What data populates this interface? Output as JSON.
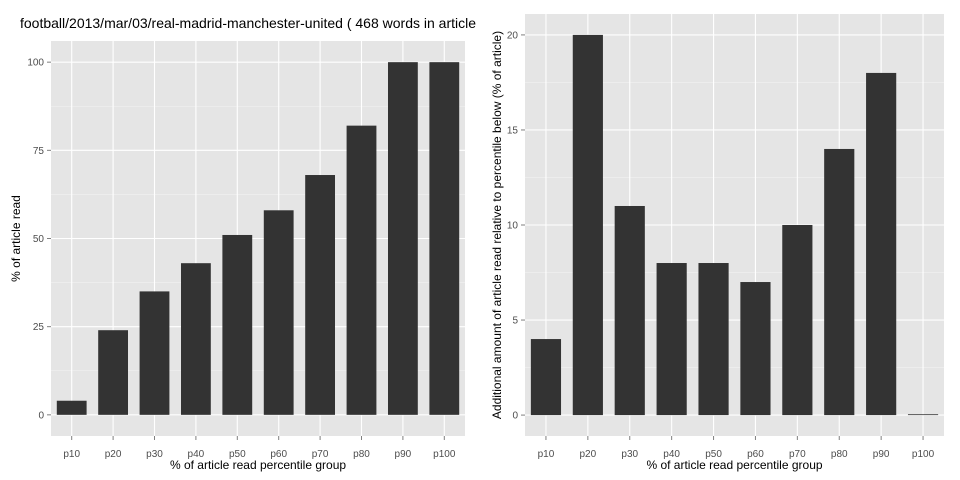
{
  "chart_data": [
    {
      "type": "bar",
      "title": "football/2013/mar/03/real-madrid-manchester-united ( 468 words in article )",
      "xlabel": "% of article read percentile group",
      "ylabel": "% of article read",
      "categories": [
        "p10",
        "p20",
        "p30",
        "p40",
        "p50",
        "p60",
        "p70",
        "p80",
        "p90",
        "p100"
      ],
      "values": [
        4,
        24,
        35,
        43,
        51,
        58,
        68,
        82,
        100,
        100
      ],
      "ylim": [
        -6,
        106
      ],
      "yticks": [
        0,
        25,
        50,
        75,
        100
      ],
      "ytick_labels": [
        "0",
        "25",
        "50",
        "75",
        "100"
      ],
      "grid": true,
      "colors": {
        "bar": "#333333",
        "panel": "#e5e5e5",
        "grid_major": "#ffffff",
        "grid_minor": "#f2f2f2"
      }
    },
    {
      "type": "bar",
      "title": "",
      "xlabel": "% of article read percentile group",
      "ylabel": "Additional amount of article read relative to percentile below (% of article)",
      "categories": [
        "p10",
        "p20",
        "p30",
        "p40",
        "p50",
        "p60",
        "p70",
        "p80",
        "p90",
        "p100"
      ],
      "values": [
        4,
        20,
        11,
        8,
        8,
        7,
        10,
        14,
        18,
        0
      ],
      "ylim": [
        -1.1,
        21.1
      ],
      "yticks": [
        0,
        5,
        10,
        15,
        20
      ],
      "ytick_labels": [
        "0",
        "5",
        "10",
        "15",
        "20"
      ],
      "grid": true,
      "colors": {
        "bar": "#333333",
        "panel": "#e5e5e5",
        "grid_major": "#ffffff",
        "grid_minor": "#f2f2f2"
      }
    }
  ]
}
